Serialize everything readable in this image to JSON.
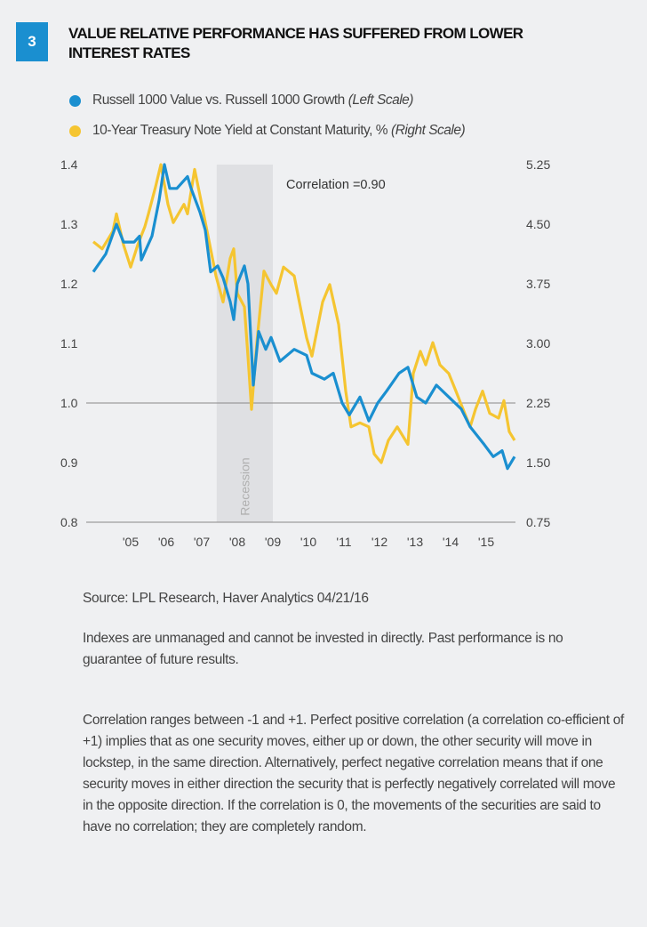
{
  "badge": "3",
  "title": "Value Relative Performance Has Suffered from Lower Interest Rates",
  "colors": {
    "blue": "#1a8fd0",
    "gold": "#f5c531",
    "recession": "#dfe0e3",
    "badge": "#1a8fd0"
  },
  "chart_data": {
    "type": "line",
    "title": "Value Relative Performance Has Suffered from Lower Interest Rates",
    "legend_placement": "top-left",
    "annotation": "Correlation =0.90",
    "recession_label": "Recession",
    "recession": [
      2007.92,
      2009.5
    ],
    "x_ticks": [
      "'05",
      "'06",
      "'07",
      "'08",
      "'09",
      "'10",
      "'11",
      "'12",
      "'13",
      "'14",
      "'15"
    ],
    "left_axis": {
      "range": [
        0.8,
        1.4
      ],
      "ticks": [
        "1.4",
        "1.3",
        "1.2",
        "1.1",
        "1.0",
        "0.9",
        "0.8"
      ]
    },
    "right_axis": {
      "range": [
        0.75,
        5.25
      ],
      "ticks": [
        "5.25",
        "4.50",
        "3.75",
        "3.00",
        "2.25",
        "1.50",
        "0.75"
      ]
    },
    "reference_line_left": 1.0,
    "grid": false,
    "series": [
      {
        "name": "Russell 1000 Value vs. Russell 1000 Growth",
        "scale_note": "(Left Scale)",
        "axis": "left",
        "x": [
          2004.45,
          2004.8,
          2005.1,
          2005.3,
          2005.6,
          2005.75,
          2005.8,
          2006.1,
          2006.3,
          2006.45,
          2006.6,
          2006.8,
          2007.1,
          2007.2,
          2007.45,
          2007.6,
          2007.75,
          2007.95,
          2008.1,
          2008.3,
          2008.4,
          2008.5,
          2008.7,
          2008.8,
          2008.95,
          2009.1,
          2009.3,
          2009.45,
          2009.7,
          2010.1,
          2010.45,
          2010.6,
          2010.95,
          2011.2,
          2011.45,
          2011.65,
          2011.95,
          2012.2,
          2012.45,
          2012.7,
          2013.05,
          2013.3,
          2013.55,
          2013.8,
          2014.1,
          2014.45,
          2014.8,
          2015.05,
          2015.45,
          2015.7,
          2015.95,
          2016.1,
          2016.3
        ],
        "y": [
          1.22,
          1.25,
          1.3,
          1.27,
          1.27,
          1.28,
          1.24,
          1.28,
          1.34,
          1.4,
          1.36,
          1.36,
          1.38,
          1.36,
          1.32,
          1.29,
          1.22,
          1.23,
          1.21,
          1.17,
          1.14,
          1.2,
          1.23,
          1.2,
          1.03,
          1.12,
          1.09,
          1.11,
          1.07,
          1.09,
          1.08,
          1.05,
          1.04,
          1.05,
          1.0,
          0.98,
          1.01,
          0.97,
          1.0,
          1.02,
          1.05,
          1.06,
          1.01,
          1.0,
          1.03,
          1.01,
          0.99,
          0.96,
          0.93,
          0.91,
          0.92,
          0.89,
          0.91
        ]
      },
      {
        "name": "10-Year Treasury Note Yield at Constant Maturity, %",
        "scale_note": "(Right Scale)",
        "axis": "right",
        "x": [
          2004.45,
          2004.7,
          2005.0,
          2005.1,
          2005.3,
          2005.5,
          2005.7,
          2005.9,
          2006.0,
          2006.2,
          2006.35,
          2006.55,
          2006.7,
          2007.0,
          2007.1,
          2007.3,
          2007.5,
          2007.7,
          2007.9,
          2008.1,
          2008.3,
          2008.4,
          2008.5,
          2008.7,
          2008.8,
          2008.9,
          2009.05,
          2009.25,
          2009.45,
          2009.6,
          2009.8,
          2010.1,
          2010.3,
          2010.45,
          2010.6,
          2010.9,
          2011.1,
          2011.35,
          2011.55,
          2011.7,
          2011.95,
          2012.2,
          2012.35,
          2012.55,
          2012.75,
          2013.0,
          2013.3,
          2013.45,
          2013.65,
          2013.8,
          2014.0,
          2014.2,
          2014.45,
          2014.65,
          2014.8,
          2015.05,
          2015.2,
          2015.4,
          2015.6,
          2015.85,
          2016.0,
          2016.15,
          2016.3
        ],
        "y": [
          4.28,
          4.19,
          4.41,
          4.63,
          4.24,
          3.96,
          4.24,
          4.47,
          4.63,
          4.97,
          5.25,
          4.75,
          4.52,
          4.75,
          4.63,
          5.19,
          4.75,
          4.3,
          3.85,
          3.52,
          4.07,
          4.19,
          3.63,
          3.46,
          2.84,
          2.17,
          3.01,
          3.91,
          3.74,
          3.63,
          3.96,
          3.85,
          3.4,
          3.07,
          2.84,
          3.52,
          3.74,
          3.24,
          2.4,
          1.95,
          2.0,
          1.95,
          1.61,
          1.5,
          1.78,
          1.95,
          1.73,
          2.62,
          2.9,
          2.73,
          3.01,
          2.73,
          2.62,
          2.4,
          2.23,
          1.95,
          2.17,
          2.4,
          2.12,
          2.06,
          2.28,
          1.89,
          1.78
        ]
      }
    ]
  },
  "source": "Source: LPL Research, Haver Analytics   04/21/16",
  "disclaimer": "Indexes are unmanaged and cannot be invested in directly. Past performance is no guarantee of future results.",
  "correlation_note": "Correlation ranges between -1 and +1. Perfect positive correlation (a correlation co-efficient of +1) implies that as one security moves, either up or down, the other security will move in lockstep, in the same direction. Alternatively, perfect negative correlation means that if one security moves in either direction the security that is perfectly negatively correlated will move in the opposite direction. If the correlation is 0, the movements of the securities are said to have no correlation; they are completely random."
}
